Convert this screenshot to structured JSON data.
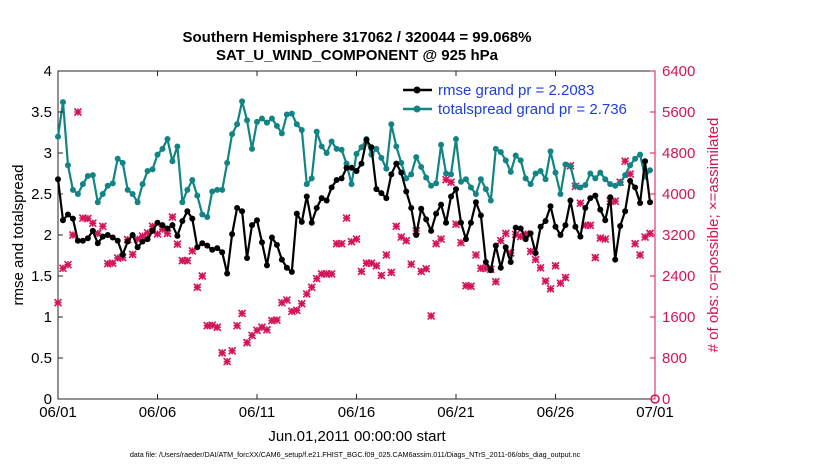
{
  "chart_data": {
    "type": "line",
    "title_line1": "Southern Hemisphere 317062 / 320044 = 99.068%",
    "title_line2": "SAT_U_WIND_COMPONENT @ 925 hPa",
    "xlabel": "Jun.01,2011 00:00:00 start",
    "ylabel_left": "rmse and totalspread",
    "ylabel_right": "# of obs: o=possible; ×=assimilated",
    "footer": "data file: /Users/raeder/DAI/ATM_forcXX/CAM6_setup/f.e21.FHIST_BGC.f09_025.CAM6assim.011/Diags_NTrS_2011-06/obs_diag_output.nc",
    "x_tick_labels": [
      "06/01",
      "06/06",
      "06/11",
      "06/16",
      "06/21",
      "06/26",
      "07/01"
    ],
    "x_tick_days": [
      0,
      5,
      10,
      15,
      20,
      25,
      30
    ],
    "xlim": [
      0,
      30
    ],
    "ylim_left": [
      0,
      4
    ],
    "yticks_left": [
      "0",
      "0.5",
      "1",
      "1.5",
      "2",
      "2.5",
      "3",
      "3.5",
      "4"
    ],
    "ylim_right": [
      0,
      6400
    ],
    "yticks_right": [
      "0",
      "800",
      "1600",
      "2400",
      "3200",
      "4000",
      "4800",
      "5600",
      "6400"
    ],
    "legend_position": "top-right",
    "colors": {
      "rmse": "#000000",
      "spread": "#128484",
      "obs": "#d4145a",
      "legend_text": "#1f3fd8"
    },
    "x_days": [
      0.0,
      0.25,
      0.5,
      0.75,
      1.0,
      1.25,
      1.5,
      1.75,
      2.0,
      2.25,
      2.5,
      2.75,
      3.0,
      3.25,
      3.5,
      3.75,
      4.0,
      4.25,
      4.5,
      4.75,
      5.0,
      5.25,
      5.5,
      5.75,
      6.0,
      6.25,
      6.5,
      6.75,
      7.0,
      7.25,
      7.5,
      7.75,
      8.0,
      8.25,
      8.5,
      8.75,
      9.0,
      9.25,
      9.5,
      9.75,
      10.0,
      10.25,
      10.5,
      10.75,
      11.0,
      11.25,
      11.5,
      11.75,
      12.0,
      12.25,
      12.5,
      12.75,
      13.0,
      13.25,
      13.5,
      13.75,
      14.0,
      14.25,
      14.5,
      14.75,
      15.0,
      15.25,
      15.5,
      15.75,
      16.0,
      16.25,
      16.5,
      16.75,
      17.0,
      17.25,
      17.5,
      17.75,
      18.0,
      18.25,
      18.5,
      18.75,
      19.0,
      19.25,
      19.5,
      19.75,
      20.0,
      20.25,
      20.5,
      20.75,
      21.0,
      21.25,
      21.5,
      21.75,
      22.0,
      22.25,
      22.5,
      22.75,
      23.0,
      23.25,
      23.5,
      23.75,
      24.0,
      24.25,
      24.5,
      24.75,
      25.0,
      25.25,
      25.5,
      25.75,
      26.0,
      26.25,
      26.5,
      26.75,
      27.0,
      27.25,
      27.5,
      27.75,
      28.0,
      28.25,
      28.5,
      28.75,
      29.0,
      29.25,
      29.5,
      29.75
    ],
    "series": [
      {
        "name": "rmse",
        "legend_label": "rmse grand pr = 2.2083",
        "marker": "circle",
        "values": [
          2.68,
          2.18,
          2.25,
          2.2,
          1.93,
          1.93,
          1.96,
          2.05,
          1.9,
          1.98,
          2.0,
          1.97,
          1.93,
          1.76,
          1.92,
          2.0,
          1.85,
          1.92,
          1.95,
          2.05,
          2.15,
          2.12,
          2.08,
          2.12,
          1.99,
          2.17,
          2.29,
          2.2,
          1.85,
          1.9,
          1.87,
          1.82,
          1.84,
          1.79,
          1.53,
          2.01,
          2.33,
          2.29,
          1.72,
          2.12,
          2.18,
          1.91,
          1.63,
          1.97,
          1.88,
          1.7,
          1.6,
          1.55,
          2.26,
          2.16,
          2.47,
          2.15,
          2.33,
          2.45,
          2.42,
          2.58,
          2.67,
          2.69,
          2.82,
          2.82,
          2.78,
          2.87,
          3.16,
          3.07,
          2.56,
          2.51,
          2.45,
          2.74,
          2.87,
          2.76,
          2.53,
          2.33,
          2.0,
          2.32,
          2.19,
          2.05,
          2.26,
          2.37,
          2.15,
          2.47,
          2.56,
          2.15,
          1.95,
          2.15,
          2.4,
          2.24,
          1.67,
          1.57,
          1.87,
          1.6,
          1.85,
          1.67,
          2.09,
          2.08,
          1.95,
          2.02,
          1.78,
          2.1,
          2.17,
          2.35,
          2.1,
          2.0,
          2.12,
          2.42,
          2.1,
          1.98,
          2.33,
          2.45,
          2.48,
          2.31,
          2.18,
          2.46,
          1.7,
          2.11,
          2.29,
          2.66,
          2.58,
          2.39,
          2.9,
          2.4
        ]
      },
      {
        "name": "totalspread",
        "legend_label": "totalspread grand pr = 2.736",
        "marker": "circle",
        "values": [
          3.2,
          3.62,
          2.85,
          2.55,
          2.5,
          2.62,
          2.72,
          2.73,
          2.4,
          2.5,
          2.6,
          2.63,
          2.93,
          2.88,
          2.55,
          2.5,
          2.4,
          2.62,
          2.78,
          2.8,
          2.98,
          3.05,
          3.17,
          2.9,
          3.08,
          2.4,
          2.55,
          2.67,
          2.48,
          2.25,
          2.22,
          2.53,
          2.55,
          2.55,
          2.88,
          3.23,
          3.35,
          3.63,
          3.4,
          3.05,
          3.38,
          3.42,
          3.37,
          3.42,
          3.33,
          3.24,
          3.47,
          3.48,
          3.35,
          3.28,
          2.62,
          2.69,
          3.26,
          3.08,
          3.0,
          3.14,
          3.05,
          3.04,
          2.87,
          2.62,
          2.99,
          3.07,
          3.17,
          2.98,
          3.05,
          2.94,
          2.81,
          3.35,
          3.08,
          2.88,
          2.69,
          2.74,
          2.95,
          2.83,
          2.7,
          2.6,
          2.63,
          3.1,
          2.75,
          2.74,
          3.17,
          2.65,
          2.68,
          2.58,
          2.5,
          2.68,
          2.56,
          2.42,
          3.05,
          3.01,
          2.91,
          2.77,
          2.97,
          2.91,
          2.69,
          2.62,
          2.75,
          2.78,
          2.68,
          3.02,
          2.76,
          2.5,
          2.86,
          2.84,
          2.6,
          2.58,
          2.61,
          2.75,
          2.69,
          2.76,
          2.68,
          2.62,
          2.6,
          2.63,
          2.73,
          2.85,
          2.93,
          2.98,
          2.71,
          2.79
        ]
      },
      {
        "name": "obs_assimilated",
        "marker": "cross",
        "values": [
          1880,
          2550,
          2620,
          3200,
          5600,
          3530,
          3520,
          3430,
          3230,
          3370,
          2640,
          2650,
          2750,
          2760,
          3110,
          2820,
          3120,
          3180,
          3240,
          3370,
          3220,
          3310,
          3230,
          3550,
          3020,
          2700,
          2700,
          2890,
          2180,
          2400,
          1430,
          1440,
          1400,
          900,
          730,
          940,
          1430,
          1670,
          1100,
          1240,
          1340,
          1400,
          1350,
          1530,
          1540,
          1880,
          1930,
          1710,
          1730,
          1860,
          2050,
          2180,
          2350,
          2440,
          2440,
          2440,
          3030,
          3030,
          3530,
          3070,
          3120,
          2490,
          2650,
          2650,
          2600,
          2410,
          2810,
          2470,
          3370,
          3160,
          3090,
          2630,
          3280,
          2490,
          2540,
          1620,
          3030,
          3120,
          4280,
          4230,
          3410,
          3050,
          2210,
          2200,
          2810,
          2550,
          2550,
          2530,
          2290,
          3090,
          3230,
          2850,
          3210,
          3170,
          3220,
          2880,
          2720,
          2560,
          2300,
          2150,
          2600,
          2260,
          2370,
          4550,
          4150,
          3820,
          3390,
          3390,
          2760,
          3140,
          3120,
          3860,
          3860,
          4230,
          4640,
          4390,
          3030,
          2810,
          3160,
          3230
        ]
      }
    ],
    "obs_possible_at_end": 0
  }
}
